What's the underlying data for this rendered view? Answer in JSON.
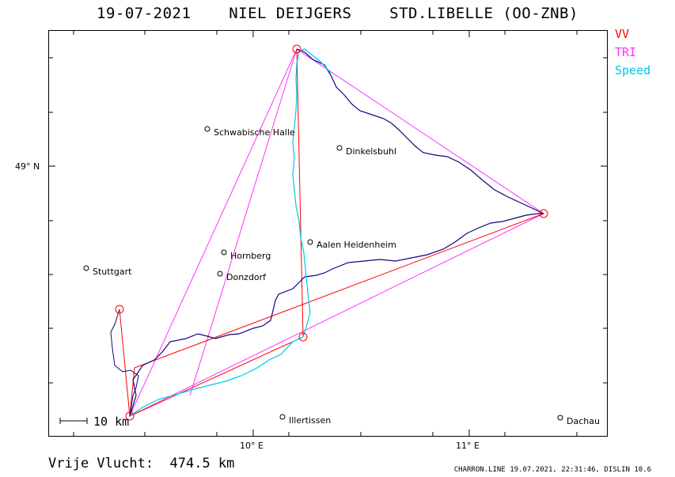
{
  "header": {
    "title": "19-07-2021    NIEL DEIJGERS    STD.LIBELLE (OO-ZNB)"
  },
  "legend": [
    {
      "label": "VV",
      "color": "#ff0000"
    },
    {
      "label": "TRI",
      "color": "#ff33ff"
    },
    {
      "label": "Speed",
      "color": "#00c8e6"
    }
  ],
  "axes": {
    "lat_label": "49° N",
    "lon_labels": [
      "10° E",
      "11° E"
    ]
  },
  "places": [
    {
      "name": "Schwäbische Halle",
      "label": "Schwabische Halle"
    },
    {
      "name": "Dinkelsbuhl",
      "label": "Dinkelsbuhl"
    },
    {
      "name": "Aalen Heidenheim",
      "label": "Aalen Heidenheim"
    },
    {
      "name": "Hornberg",
      "label": "Hornberg"
    },
    {
      "name": "Stuttgart",
      "label": "Stuttgart"
    },
    {
      "name": "Donzdorf",
      "label": "Donzdorf"
    },
    {
      "name": "Illertissen",
      "label": "Illertissen"
    },
    {
      "name": "Dachau",
      "label": "Dachau"
    }
  ],
  "scale": {
    "label": "10 km"
  },
  "footer": {
    "distance": "Vrije Vlucht:  474.5 km",
    "info": "CHARRON.LINE 19.07.2021, 22:31:46, DISLIN 10.6"
  },
  "colors": {
    "track": "#1a0080",
    "vv": "#ff0000",
    "tri": "#ff33ff",
    "speed": "#00c8e6"
  }
}
